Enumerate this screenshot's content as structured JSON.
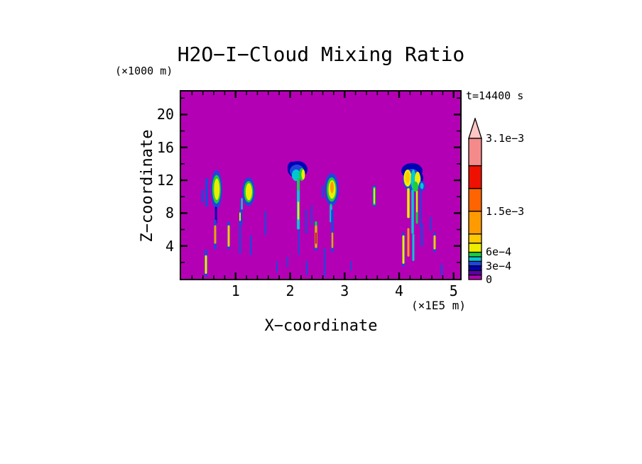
{
  "chart_data": {
    "type": "filled_contour_heatmap",
    "title": "H2O−I−Cloud Mixing Ratio",
    "time_label": "t=14400 s",
    "x": {
      "label": "X−coordinate",
      "unit_label": "(×1E5 m)",
      "range": [
        0,
        5.12
      ],
      "major_ticks": [
        1,
        2,
        3,
        4,
        5
      ],
      "major_tick_labels": [
        "1",
        "2",
        "3",
        "4",
        "5"
      ],
      "minor_tick_step": 0.2
    },
    "z": {
      "label": "Z−coordinate",
      "unit_label": "(×1000 m)",
      "range": [
        0,
        22.8
      ],
      "major_ticks": [
        4,
        8,
        12,
        16,
        20
      ],
      "major_tick_labels": [
        "4",
        "8",
        "12",
        "16",
        "20"
      ],
      "minor_tick_step": 2
    },
    "background": "magenta",
    "palette": {
      "magenta": "#B400B4",
      "purple": "#5A00A8",
      "dkblue": "#0000B4",
      "blue": "#2343DE",
      "cyan": "#00C8D2",
      "green": "#1ECC3C",
      "yellow": "#EDED00",
      "gold": "#FFC800",
      "orange": "#FF9B00",
      "dkorange": "#FF6400",
      "red": "#EE1000",
      "salmon": "#F58A8A",
      "pink": "#FFC6C6"
    },
    "colorbar": {
      "levels": [
        0,
        0.0001,
        0.0002,
        0.0003,
        0.0004,
        0.0005,
        0.0006,
        0.0008,
        0.001,
        0.0015,
        0.002,
        0.0025,
        0.0031
      ],
      "colors": [
        "magenta",
        "purple",
        "dkblue",
        "blue",
        "cyan",
        "green",
        "yellow",
        "gold",
        "orange",
        "dkorange",
        "red",
        "salmon"
      ],
      "overflow_color": "pink",
      "labels": [
        {
          "value": 0.0031,
          "text": "3.1e−3"
        },
        {
          "value": 0.0015,
          "text": "1.5e−3"
        },
        {
          "value": 0.0006,
          "text": "6e−4"
        },
        {
          "value": 0.0003,
          "text": "3e−4"
        },
        {
          "value": 0,
          "text": "0"
        }
      ]
    },
    "features": [
      {
        "t": "s",
        "x": 0.47,
        "z1": 12.26,
        "z0": 8.78,
        "w": 0.052,
        "c": "blue"
      },
      {
        "t": "s",
        "x": 0.39,
        "z1": 10.87,
        "z0": 9.3,
        "w": 0.04,
        "c": "blue"
      },
      {
        "t": "e",
        "x": 0.65,
        "z": 10.87,
        "rx": 0.104,
        "rz": 2.35,
        "c": "blue"
      },
      {
        "t": "e",
        "x": 0.65,
        "z": 10.9,
        "rx": 0.078,
        "rz": 1.74,
        "c": "green"
      },
      {
        "t": "e",
        "x": 0.655,
        "z": 10.9,
        "rx": 0.052,
        "rz": 1.3,
        "c": "yellow"
      },
      {
        "t": "s",
        "x": 0.64,
        "z1": 8.78,
        "z0": 6.7,
        "w": 0.039,
        "c": "dkblue"
      },
      {
        "t": "e",
        "x": 1.238,
        "z": 10.6,
        "rx": 0.117,
        "rz": 1.74,
        "c": "blue"
      },
      {
        "t": "e",
        "x": 1.238,
        "z": 10.6,
        "rx": 0.085,
        "rz": 1.3,
        "c": "green"
      },
      {
        "t": "e",
        "x": 1.243,
        "z": 10.6,
        "rx": 0.059,
        "rz": 1.04,
        "c": "yellow"
      },
      {
        "t": "s",
        "x": 1.107,
        "z1": 8.96,
        "z0": 6.52,
        "w": 0.039,
        "c": "blue"
      },
      {
        "t": "s",
        "x": 1.115,
        "z1": 9.83,
        "z0": 8.43,
        "w": 0.033,
        "c": "cyan"
      },
      {
        "t": "s",
        "x": 0.456,
        "z1": 3.57,
        "z0": 0.26,
        "w": 0.052,
        "c": "blue"
      },
      {
        "t": "s",
        "x": 0.456,
        "z1": 2.87,
        "z0": 0.61,
        "w": 0.039,
        "c": "yellow"
      },
      {
        "t": "s",
        "x": 0.625,
        "z1": 7.22,
        "z0": 3.57,
        "w": 0.052,
        "c": "blue"
      },
      {
        "t": "s",
        "x": 0.625,
        "z1": 6.52,
        "z0": 4.26,
        "w": 0.039,
        "c": "orange"
      },
      {
        "t": "s",
        "x": 0.873,
        "z1": 6.96,
        "z0": 3.57,
        "w": 0.052,
        "c": "blue"
      },
      {
        "t": "s",
        "x": 0.873,
        "z1": 6.52,
        "z0": 3.91,
        "w": 0.039,
        "c": "gold"
      },
      {
        "t": "s",
        "x": 1.081,
        "z1": 8.26,
        "z0": 3.04,
        "w": 0.039,
        "c": "blue"
      },
      {
        "t": "s",
        "x": 1.081,
        "z1": 8.09,
        "z0": 7.04,
        "w": 0.026,
        "c": "yellow"
      },
      {
        "t": "s",
        "x": 1.55,
        "z1": 8.26,
        "z0": 5.3,
        "w": 0.033,
        "c": "blue"
      },
      {
        "t": "s",
        "x": 1.277,
        "z1": 5.3,
        "z0": 2.87,
        "w": 0.033,
        "c": "blue"
      },
      {
        "t": "s",
        "x": 1.759,
        "z1": 2.17,
        "z0": 0.7,
        "w": 0.026,
        "c": "blue"
      },
      {
        "t": "s",
        "x": 1.954,
        "z1": 2.7,
        "z0": 1.39,
        "w": 0.026,
        "c": "blue"
      },
      {
        "t": "e",
        "x": 2.137,
        "z": 13.3,
        "rx": 0.182,
        "rz": 1.04,
        "c": "dkblue"
      },
      {
        "t": "e",
        "x": 2.03,
        "z": 13.48,
        "rx": 0.078,
        "rz": 0.78,
        "c": "dkblue"
      },
      {
        "t": "e",
        "x": 2.124,
        "z": 13.13,
        "rx": 0.13,
        "rz": 0.78,
        "c": "blue"
      },
      {
        "t": "e",
        "x": 2.11,
        "z": 12.61,
        "rx": 0.078,
        "rz": 0.7,
        "c": "cyan"
      },
      {
        "t": "e",
        "x": 2.215,
        "z": 12.7,
        "rx": 0.052,
        "rz": 0.78,
        "c": "green"
      },
      {
        "t": "e",
        "x": 2.241,
        "z": 12.7,
        "rx": 0.033,
        "rz": 0.61,
        "c": "yellow"
      },
      {
        "t": "s",
        "x": 2.15,
        "z1": 12.26,
        "z0": 6.0,
        "w": 0.052,
        "c": "cyan"
      },
      {
        "t": "s",
        "x": 2.15,
        "z1": 12.26,
        "z0": 10.7,
        "w": 0.039,
        "c": "green"
      },
      {
        "t": "s",
        "x": 2.15,
        "z1": 9.4,
        "z0": 7.2,
        "w": 0.03,
        "c": "yellow"
      },
      {
        "t": "s",
        "x": 2.16,
        "z1": 6.0,
        "z0": 2.9,
        "w": 0.03,
        "c": "blue"
      },
      {
        "t": "s",
        "x": 2.593,
        "z1": 11.39,
        "z0": 9.83,
        "w": 0.033,
        "c": "blue"
      },
      {
        "t": "s",
        "x": 2.293,
        "z1": 8.43,
        "z0": 5.48,
        "w": 0.033,
        "c": "blue"
      },
      {
        "t": "s",
        "x": 2.397,
        "z1": 8.96,
        "z0": 6.52,
        "w": 0.026,
        "c": "blue"
      },
      {
        "t": "e",
        "x": 2.762,
        "z": 10.87,
        "rx": 0.13,
        "rz": 2.0,
        "c": "blue"
      },
      {
        "t": "e",
        "x": 2.762,
        "z": 10.87,
        "rx": 0.091,
        "rz": 1.48,
        "c": "green"
      },
      {
        "t": "e",
        "x": 2.768,
        "z": 10.87,
        "rx": 0.065,
        "rz": 1.13,
        "c": "yellow"
      },
      {
        "t": "e",
        "x": 2.768,
        "z": 11.13,
        "rx": 0.033,
        "rz": 0.7,
        "c": "orange"
      },
      {
        "t": "s",
        "x": 2.749,
        "z1": 9.13,
        "z0": 8.26,
        "w": 0.039,
        "c": "green"
      },
      {
        "t": "s",
        "x": 2.749,
        "z1": 8.96,
        "z0": 6.87,
        "w": 0.046,
        "c": "cyan"
      },
      {
        "t": "s",
        "x": 3.544,
        "z1": 11.39,
        "z0": 8.78,
        "w": 0.065,
        "c": "blue"
      },
      {
        "t": "s",
        "x": 3.544,
        "z1": 11.22,
        "z0": 8.96,
        "w": 0.046,
        "c": "green"
      },
      {
        "t": "s",
        "x": 3.544,
        "z1": 11.04,
        "z0": 9.13,
        "w": 0.026,
        "c": "yellow"
      },
      {
        "t": "e",
        "x": 4.235,
        "z": 13.13,
        "rx": 0.195,
        "rz": 0.96,
        "c": "dkblue"
      },
      {
        "t": "e",
        "x": 4.365,
        "z": 12.26,
        "rx": 0.078,
        "rz": 0.7,
        "c": "dkblue"
      },
      {
        "t": "e",
        "x": 4.235,
        "z": 12.0,
        "rx": 0.169,
        "rz": 1.39,
        "c": "blue"
      },
      {
        "t": "e",
        "x": 4.156,
        "z": 12.26,
        "rx": 0.072,
        "rz": 1.04,
        "c": "yellow"
      },
      {
        "t": "e",
        "x": 4.156,
        "z": 12.35,
        "rx": 0.039,
        "rz": 0.7,
        "c": "gold"
      },
      {
        "t": "e",
        "x": 4.26,
        "z": 12.09,
        "rx": 0.046,
        "rz": 1.22,
        "c": "cyan"
      },
      {
        "t": "e",
        "x": 4.339,
        "z": 12.17,
        "rx": 0.052,
        "rz": 0.87,
        "c": "yellow"
      },
      {
        "t": "e",
        "x": 4.3,
        "z": 11.22,
        "rx": 0.052,
        "rz": 0.61,
        "c": "green"
      },
      {
        "t": "e",
        "x": 4.417,
        "z": 11.3,
        "rx": 0.059,
        "rz": 0.61,
        "c": "blue"
      },
      {
        "t": "e",
        "x": 4.417,
        "z": 11.3,
        "rx": 0.033,
        "rz": 0.39,
        "c": "cyan"
      },
      {
        "t": "s",
        "x": 4.169,
        "z1": 11.04,
        "z0": 7.39,
        "w": 0.046,
        "c": "yellow"
      },
      {
        "t": "s",
        "x": 4.248,
        "z1": 10.87,
        "z0": 5.48,
        "w": 0.046,
        "c": "cyan"
      },
      {
        "t": "s",
        "x": 4.326,
        "z1": 10.87,
        "z0": 6.7,
        "w": 0.039,
        "c": "green"
      },
      {
        "t": "s",
        "x": 4.326,
        "z1": 10.7,
        "z0": 8.09,
        "w": 0.026,
        "c": "yellow"
      },
      {
        "t": "s",
        "x": 4.391,
        "z1": 11.04,
        "z0": 6.35,
        "w": 0.033,
        "c": "blue"
      },
      {
        "t": "s",
        "x": 2.475,
        "z1": 7.04,
        "z0": 3.39,
        "w": 0.059,
        "c": "blue"
      },
      {
        "t": "s",
        "x": 2.475,
        "z1": 7.0,
        "z0": 6.1,
        "w": 0.039,
        "c": "green"
      },
      {
        "t": "s",
        "x": 2.475,
        "z1": 6.52,
        "z0": 3.74,
        "w": 0.046,
        "c": "orange"
      },
      {
        "t": "s",
        "x": 2.475,
        "z1": 5.65,
        "z0": 4.26,
        "w": 0.026,
        "c": "red"
      },
      {
        "t": "s",
        "x": 2.632,
        "z1": 3.74,
        "z0": 0.26,
        "w": 0.033,
        "c": "blue"
      },
      {
        "t": "s",
        "x": 2.775,
        "z1": 8.43,
        "z0": 3.22,
        "w": 0.046,
        "c": "blue"
      },
      {
        "t": "s",
        "x": 2.775,
        "z1": 5.65,
        "z0": 3.74,
        "w": 0.033,
        "c": "orange"
      },
      {
        "t": "s",
        "x": 4.078,
        "z1": 5.65,
        "z0": 1.48,
        "w": 0.052,
        "c": "blue"
      },
      {
        "t": "s",
        "x": 4.078,
        "z1": 5.3,
        "z0": 1.83,
        "w": 0.039,
        "c": "yellow"
      },
      {
        "t": "s",
        "x": 4.169,
        "z1": 6.17,
        "z0": 2.7,
        "w": 0.039,
        "c": "orange"
      },
      {
        "t": "s",
        "x": 4.26,
        "z1": 5.48,
        "z0": 2.17,
        "w": 0.039,
        "c": "cyan"
      },
      {
        "t": "s",
        "x": 4.417,
        "z1": 6.7,
        "z0": 3.91,
        "w": 0.039,
        "c": "blue"
      },
      {
        "t": "s",
        "x": 4.573,
        "z1": 7.57,
        "z0": 5.83,
        "w": 0.033,
        "c": "blue"
      },
      {
        "t": "s",
        "x": 4.651,
        "z1": 5.65,
        "z0": 3.22,
        "w": 0.052,
        "c": "blue"
      },
      {
        "t": "s",
        "x": 4.651,
        "z1": 5.3,
        "z0": 3.57,
        "w": 0.039,
        "c": "gold"
      },
      {
        "t": "s",
        "x": 4.782,
        "z1": 1.83,
        "z0": 0.43,
        "w": 0.033,
        "c": "blue"
      },
      {
        "t": "s",
        "x": 2.306,
        "z1": 2.17,
        "z0": 0.43,
        "w": 0.033,
        "c": "blue"
      },
      {
        "t": "s",
        "x": 3.114,
        "z1": 2.17,
        "z0": 0.96,
        "w": 0.026,
        "c": "blue"
      }
    ]
  }
}
